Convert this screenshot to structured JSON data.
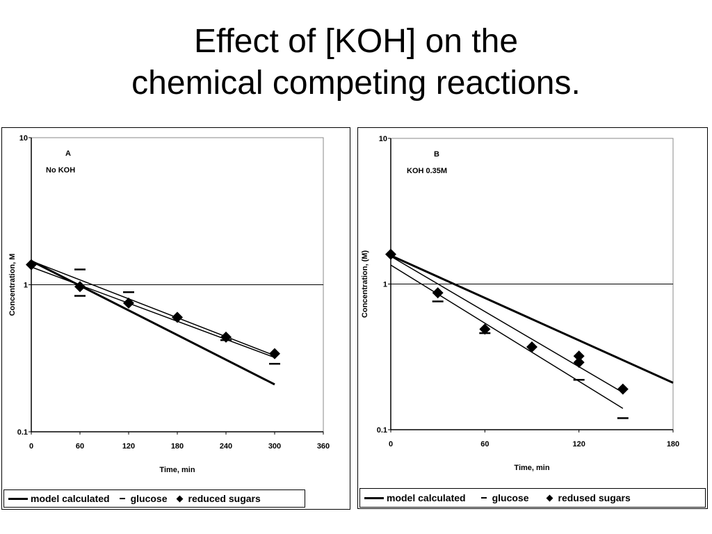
{
  "title": {
    "line1": "Effect of [KOH] on the",
    "line2": "chemical competing reactions."
  },
  "chart_data": [
    {
      "type": "line",
      "panel_label": "A",
      "annotation": "No KOH",
      "xlabel": "Time, min",
      "ylabel": "Concentration, M",
      "log_y": true,
      "xlim": [
        0,
        360
      ],
      "ylim": [
        0.1,
        10
      ],
      "x_ticks": [
        "0",
        "60",
        "120",
        "180",
        "240",
        "300",
        "360"
      ],
      "y_ticks": [
        "10",
        "1",
        "0.1"
      ],
      "grid": "horizontal line at 1",
      "legend_position": "bottom",
      "series": [
        {
          "name": "model calculated",
          "kind": "line",
          "stroke": 3,
          "x": [
            0,
            300
          ],
          "y": [
            1.45,
            0.21
          ]
        },
        {
          "kind": "line",
          "stroke": 1.5,
          "x": [
            0,
            300
          ],
          "y": [
            1.45,
            0.33
          ]
        },
        {
          "kind": "line",
          "stroke": 1.5,
          "x": [
            0,
            300
          ],
          "y": [
            1.32,
            0.32
          ]
        },
        {
          "name": "glucose",
          "kind": "dash",
          "x": [
            60,
            60,
            120,
            240,
            300
          ],
          "y": [
            1.27,
            0.84,
            0.89,
            0.42,
            0.29
          ]
        },
        {
          "name": "reduced sugars",
          "kind": "diamond",
          "x": [
            0,
            60,
            120,
            180,
            240,
            300
          ],
          "y": [
            1.37,
            0.97,
            0.75,
            0.6,
            0.44,
            0.34
          ]
        }
      ]
    },
    {
      "type": "line",
      "panel_label": "B",
      "annotation": "KOH 0.35M",
      "xlabel": "Time, min",
      "ylabel": "Concentration, (M)",
      "log_y": true,
      "xlim": [
        0,
        180
      ],
      "ylim": [
        0.1,
        10
      ],
      "x_ticks": [
        "0",
        "60",
        "120",
        "180"
      ],
      "y_ticks": [
        "10",
        "1",
        "0.1"
      ],
      "grid": "horizontal line at 1",
      "legend_position": "bottom",
      "series": [
        {
          "name": "model calculated",
          "kind": "line",
          "stroke": 3,
          "x": [
            0,
            180
          ],
          "y": [
            1.57,
            0.21
          ]
        },
        {
          "kind": "line",
          "stroke": 1.5,
          "x": [
            0,
            148
          ],
          "y": [
            1.55,
            0.18
          ]
        },
        {
          "kind": "line",
          "stroke": 1.5,
          "x": [
            0,
            148
          ],
          "y": [
            1.35,
            0.14
          ]
        },
        {
          "name": "glucose",
          "kind": "dash",
          "x": [
            30,
            60,
            120,
            148
          ],
          "y": [
            0.76,
            0.46,
            0.22,
            0.12
          ]
        },
        {
          "name": "redused sugars",
          "kind": "diamond",
          "x": [
            0,
            30,
            60,
            90,
            120,
            120,
            148
          ],
          "y": [
            1.6,
            0.87,
            0.49,
            0.37,
            0.32,
            0.29,
            0.19
          ]
        }
      ]
    }
  ],
  "legends": [
    {
      "model": "model calculated",
      "glucose": "glucose",
      "sugars": "reduced sugars"
    },
    {
      "model": "model calculated",
      "glucose": "glucose",
      "sugars": "redused sugars"
    }
  ]
}
